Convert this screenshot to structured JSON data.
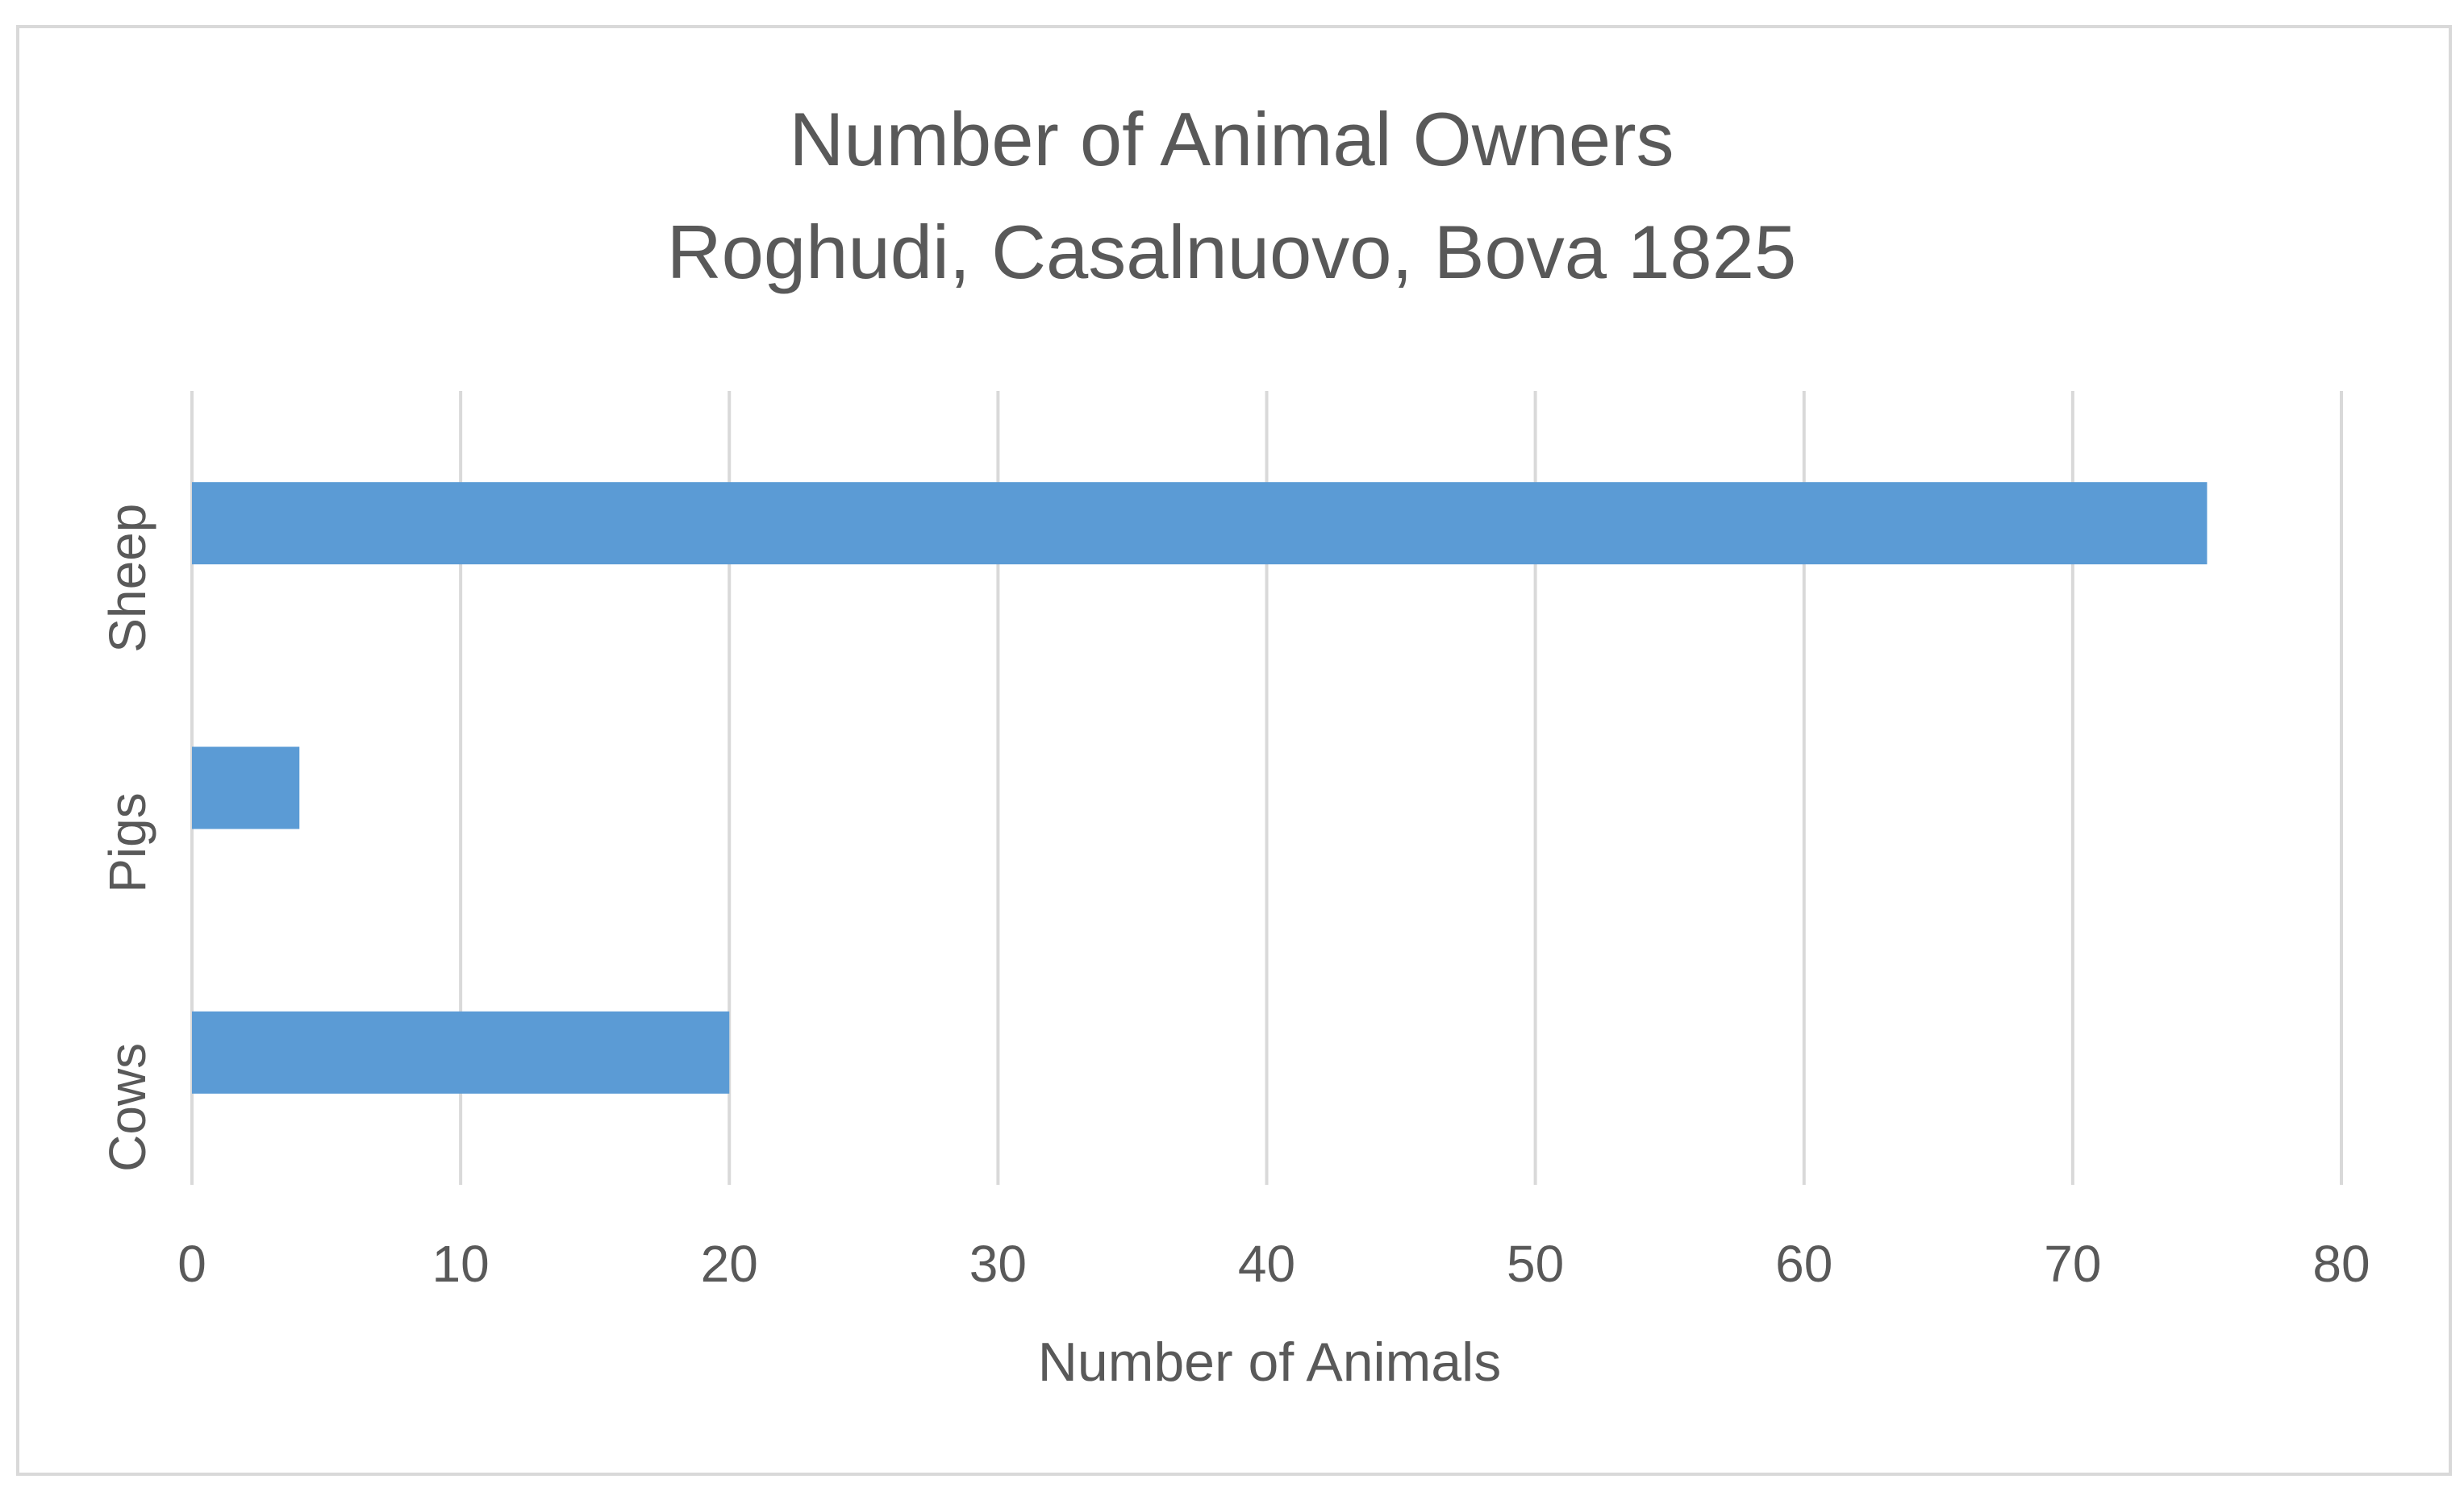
{
  "chart_data": {
    "type": "bar",
    "orientation": "horizontal",
    "title": "Number of Animal Owners",
    "subtitle": "Roghudi, Casalnuovo, Bova 1825",
    "categories": [
      "Cows",
      "Pigs",
      "Sheep"
    ],
    "values": [
      20,
      4,
      75
    ],
    "xlabel": "Number of Animals",
    "ylabel": "",
    "xlim": [
      0,
      80
    ],
    "xticks": [
      0,
      10,
      20,
      30,
      40,
      50,
      60,
      70,
      80
    ],
    "xtick_labels": [
      "0",
      "10",
      "20",
      "30",
      "40",
      "50",
      "60",
      "70",
      "80"
    ],
    "grid": "vertical",
    "legend": "none",
    "bar_color": "#5b9bd5",
    "grid_color": "#d9d9d9",
    "text_color": "#595959"
  }
}
